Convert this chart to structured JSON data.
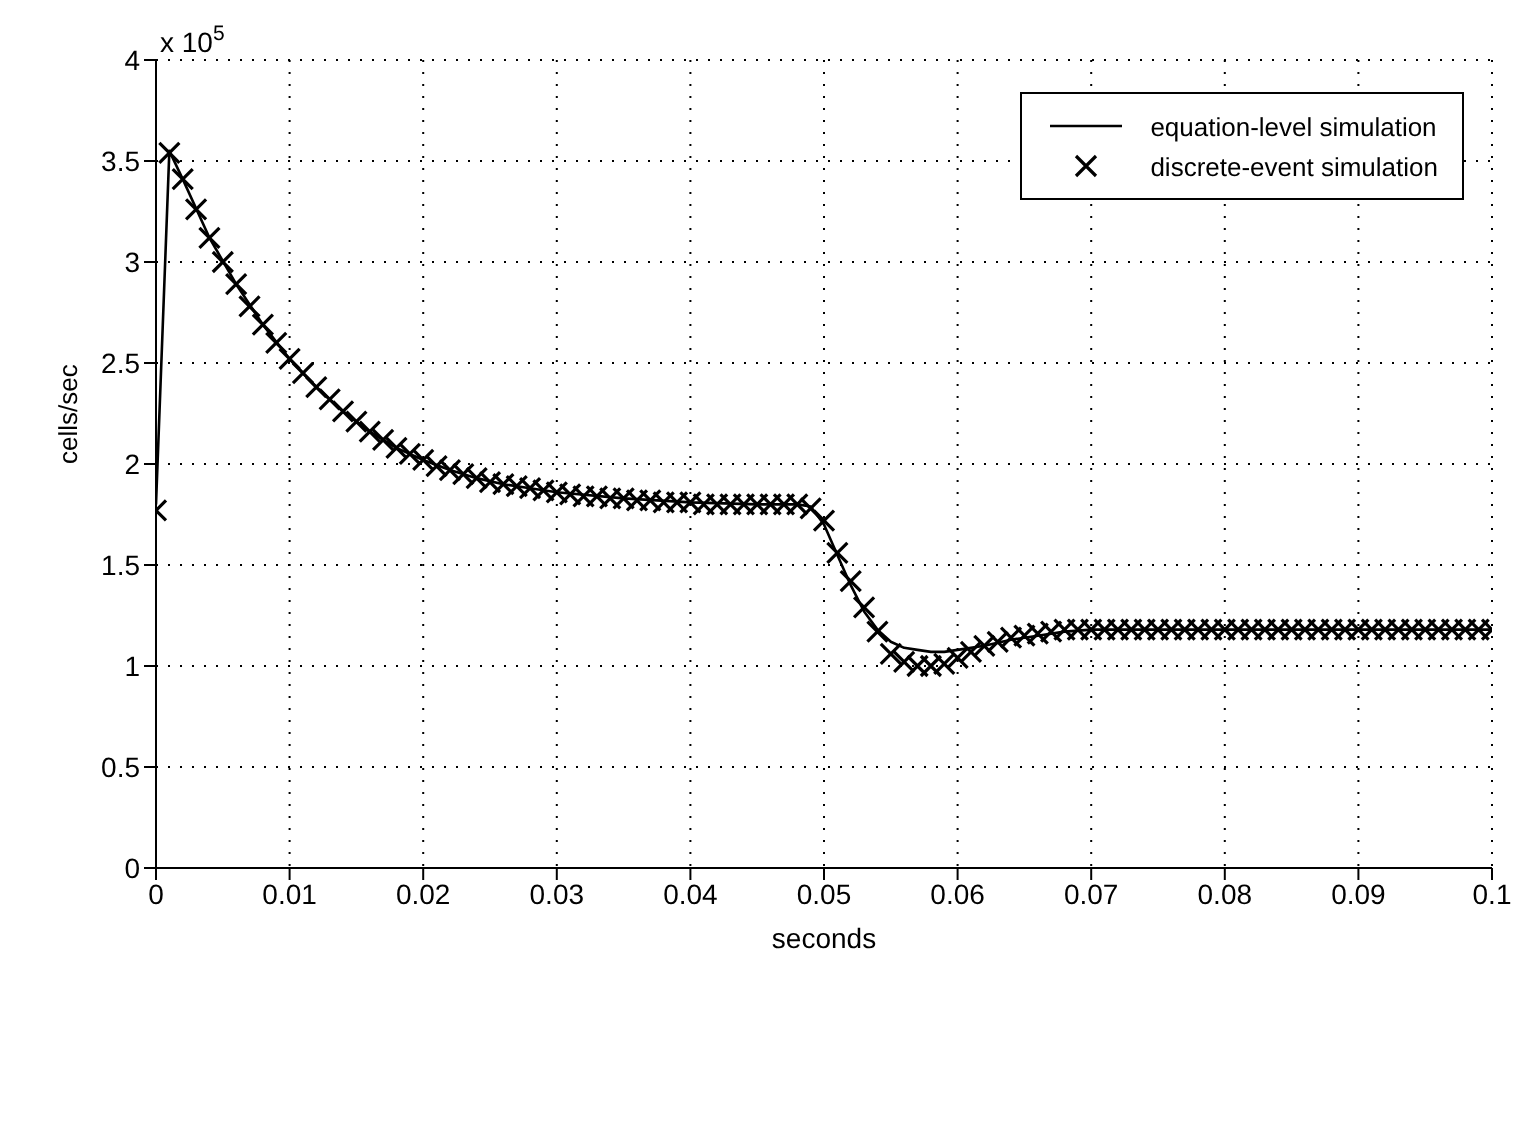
{
  "chart_data": {
    "type": "line",
    "xlabel": "seconds",
    "ylabel": "cells/sec",
    "annotations": [
      "x 10$^{5}$"
    ],
    "xlim": [
      0,
      0.1
    ],
    "xticks": [
      0,
      0.01,
      0.02,
      0.03,
      0.04,
      0.05,
      0.06,
      0.07,
      0.08,
      0.09,
      0.1
    ],
    "ylim": [
      0,
      4
    ],
    "yticks": [
      0,
      0.5,
      1,
      1.5,
      2,
      2.5,
      3,
      3.5,
      4
    ],
    "grid": true,
    "legend": "top right",
    "series": [
      {
        "name": "equation-level simulation",
        "color": "#000000",
        "marker": "none",
        "line_style": "solid",
        "x": [
          0,
          0.001,
          0.002,
          0.004,
          0.006,
          0.008,
          0.01,
          0.012,
          0.014,
          0.016,
          0.018,
          0.02,
          0.022,
          0.024,
          0.026,
          0.028,
          0.03,
          0.035,
          0.04,
          0.045,
          0.048,
          0.049,
          0.05,
          0.051,
          0.052,
          0.053,
          0.054,
          0.055,
          0.056,
          0.057,
          0.058,
          0.059,
          0.06,
          0.062,
          0.064,
          0.066,
          0.068,
          0.07,
          0.08,
          0.09,
          0.1
        ],
        "values": [
          1.8,
          3.55,
          3.41,
          3.12,
          2.89,
          2.69,
          2.52,
          2.38,
          2.26,
          2.16,
          2.08,
          2.02,
          1.97,
          1.93,
          1.9,
          1.88,
          1.86,
          1.83,
          1.81,
          1.8,
          1.8,
          1.79,
          1.7,
          1.55,
          1.4,
          1.27,
          1.18,
          1.12,
          1.09,
          1.08,
          1.07,
          1.07,
          1.08,
          1.1,
          1.13,
          1.15,
          1.17,
          1.18,
          1.18,
          1.18,
          1.18
        ]
      },
      {
        "name": "discrete-event simulation",
        "type": "scatter",
        "color": "#000000",
        "marker": "cross",
        "x": [
          0,
          0.001,
          0.002,
          0.003,
          0.004,
          0.005,
          0.006,
          0.007,
          0.008,
          0.009,
          0.01,
          0.011,
          0.012,
          0.013,
          0.014,
          0.015,
          0.016,
          0.017,
          0.018,
          0.019,
          0.02,
          0.021,
          0.022,
          0.023,
          0.024,
          0.025,
          0.026,
          0.027,
          0.028,
          0.029,
          0.03,
          0.031,
          0.032,
          0.033,
          0.034,
          0.035,
          0.036,
          0.037,
          0.038,
          0.039,
          0.04,
          0.041,
          0.042,
          0.043,
          0.044,
          0.045,
          0.046,
          0.047,
          0.048,
          0.049,
          0.05,
          0.051,
          0.052,
          0.053,
          0.054,
          0.055,
          0.056,
          0.057,
          0.058,
          0.059,
          0.06,
          0.061,
          0.062,
          0.063,
          0.064,
          0.065,
          0.066,
          0.067,
          0.068,
          0.069,
          0.07,
          0.071,
          0.072,
          0.073,
          0.074,
          0.075,
          0.076,
          0.077,
          0.078,
          0.079,
          0.08,
          0.081,
          0.082,
          0.083,
          0.084,
          0.085,
          0.086,
          0.087,
          0.088,
          0.089,
          0.09,
          0.091,
          0.092,
          0.093,
          0.094,
          0.095,
          0.096,
          0.097,
          0.098,
          0.099,
          0.1
        ],
        "values": [
          1.77,
          3.54,
          3.41,
          3.26,
          3.12,
          3.0,
          2.89,
          2.78,
          2.69,
          2.6,
          2.52,
          2.45,
          2.38,
          2.32,
          2.26,
          2.21,
          2.16,
          2.12,
          2.08,
          2.05,
          2.02,
          1.99,
          1.97,
          1.95,
          1.93,
          1.91,
          1.9,
          1.89,
          1.88,
          1.87,
          1.86,
          1.85,
          1.84,
          1.84,
          1.83,
          1.83,
          1.82,
          1.82,
          1.81,
          1.81,
          1.81,
          1.8,
          1.8,
          1.8,
          1.8,
          1.8,
          1.8,
          1.8,
          1.8,
          1.78,
          1.72,
          1.56,
          1.42,
          1.29,
          1.17,
          1.06,
          1.02,
          1.0,
          1.0,
          1.01,
          1.04,
          1.07,
          1.1,
          1.12,
          1.14,
          1.15,
          1.16,
          1.17,
          1.18,
          1.18,
          1.18,
          1.18,
          1.18,
          1.18,
          1.18,
          1.18,
          1.18,
          1.18,
          1.18,
          1.18,
          1.18,
          1.18,
          1.18,
          1.18,
          1.18,
          1.18,
          1.18,
          1.18,
          1.18,
          1.18,
          1.18,
          1.18,
          1.18,
          1.18,
          1.18,
          1.18,
          1.18,
          1.18,
          1.18,
          1.18,
          1.18
        ]
      }
    ]
  }
}
